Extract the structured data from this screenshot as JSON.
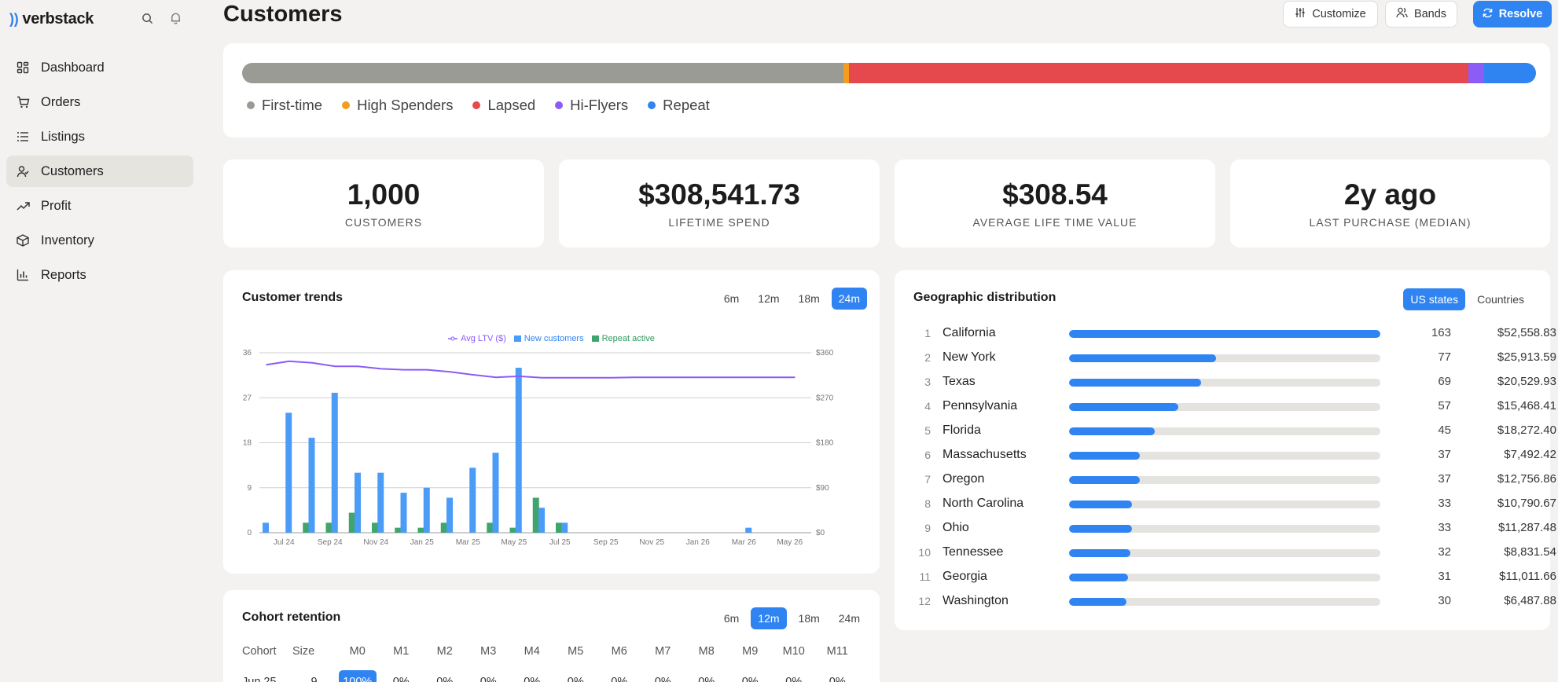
{
  "brand": {
    "name": "verbstack"
  },
  "sidebar": {
    "items": [
      {
        "label": "Dashboard",
        "icon": "dashboard-icon"
      },
      {
        "label": "Orders",
        "icon": "cart-icon"
      },
      {
        "label": "Listings",
        "icon": "list-icon"
      },
      {
        "label": "Customers",
        "icon": "user-icon"
      },
      {
        "label": "Profit",
        "icon": "trend-up-icon"
      },
      {
        "label": "Inventory",
        "icon": "box-icon"
      },
      {
        "label": "Reports",
        "icon": "bar-chart-icon"
      }
    ],
    "active": "Customers"
  },
  "header": {
    "title": "Customers",
    "buttons": {
      "customize": "Customize",
      "bands": "Bands",
      "resolve": "Resolve"
    }
  },
  "segments": {
    "items": [
      {
        "label": "First-time",
        "share": 0.465,
        "color": "#9b9b95"
      },
      {
        "label": "High Spenders",
        "share": 0.004,
        "color": "#f29d1c"
      },
      {
        "label": "Lapsed",
        "share": 0.479,
        "color": "#e5484d"
      },
      {
        "label": "Hi-Flyers",
        "share": 0.012,
        "color": "#8b5cf6"
      },
      {
        "label": "Repeat",
        "share": 0.04,
        "color": "#2f84f2"
      }
    ]
  },
  "kpis": [
    {
      "value": "1,000",
      "label": "CUSTOMERS"
    },
    {
      "value": "$308,541.73",
      "label": "LIFETIME SPEND"
    },
    {
      "value": "$308.54",
      "label": "AVERAGE LIFE TIME VALUE"
    },
    {
      "value": "2y ago",
      "label": "LAST PURCHASE (MEDIAN)"
    }
  ],
  "trends": {
    "title": "Customer trends",
    "ranges": [
      "6m",
      "12m",
      "18m",
      "24m"
    ],
    "active_range": "24m"
  },
  "chart_data": {
    "type": "bar",
    "legend": [
      "Avg LTV ($)",
      "New customers",
      "Repeat active"
    ],
    "x_ticks": [
      "Jul 24",
      "Sep 24",
      "Nov 24",
      "Jan 25",
      "Mar 25",
      "May 25",
      "Jul 25",
      "Sep 25",
      "Nov 25",
      "Jan 26",
      "Mar 26",
      "May 26"
    ],
    "y_left_ticks": [
      "0",
      "9",
      "18",
      "27",
      "36"
    ],
    "y_right_ticks": [
      "$0",
      "$90",
      "$180",
      "$270",
      "$360"
    ],
    "ylim_left": [
      0,
      36
    ],
    "ylim_right": [
      0,
      360
    ],
    "series": [
      {
        "name": "New customers",
        "color": "#4b9cf7",
        "values": [
          2,
          24,
          19,
          28,
          12,
          12,
          8,
          9,
          7,
          13,
          16,
          33,
          5,
          2,
          0,
          0,
          0,
          0,
          0,
          0,
          0,
          1,
          0,
          0
        ]
      },
      {
        "name": "Repeat active",
        "color": "#3fa56b",
        "values": [
          0,
          2,
          2,
          4,
          2,
          1,
          1,
          2,
          0,
          2,
          1,
          7,
          2,
          0,
          0,
          0,
          0,
          0,
          0,
          0,
          0,
          0,
          0,
          0
        ]
      },
      {
        "name": "Avg LTV ($)",
        "color": "#8b5cf6",
        "values": [
          336,
          343,
          340,
          333,
          333,
          328,
          326,
          326,
          322,
          316,
          311,
          313,
          310,
          310,
          310,
          310,
          311,
          311,
          311,
          311,
          311,
          311,
          311,
          311
        ]
      }
    ],
    "grid": true
  },
  "geo": {
    "title": "Geographic distribution",
    "tabs": [
      "US states",
      "Countries"
    ],
    "active_tab": "US states",
    "rows": [
      {
        "rank": "1",
        "name": "California",
        "count": "163",
        "amount": "$52,558.83",
        "share": 1.0
      },
      {
        "rank": "2",
        "name": "New York",
        "count": "77",
        "amount": "$25,913.59",
        "share": 0.472
      },
      {
        "rank": "3",
        "name": "Texas",
        "count": "69",
        "amount": "$20,529.93",
        "share": 0.423
      },
      {
        "rank": "4",
        "name": "Pennsylvania",
        "count": "57",
        "amount": "$15,468.41",
        "share": 0.35
      },
      {
        "rank": "5",
        "name": "Florida",
        "count": "45",
        "amount": "$18,272.40",
        "share": 0.276
      },
      {
        "rank": "6",
        "name": "Massachusetts",
        "count": "37",
        "amount": "$7,492.42",
        "share": 0.227
      },
      {
        "rank": "7",
        "name": "Oregon",
        "count": "37",
        "amount": "$12,756.86",
        "share": 0.227
      },
      {
        "rank": "8",
        "name": "North Carolina",
        "count": "33",
        "amount": "$10,790.67",
        "share": 0.202
      },
      {
        "rank": "9",
        "name": "Ohio",
        "count": "33",
        "amount": "$11,287.48",
        "share": 0.202
      },
      {
        "rank": "10",
        "name": "Tennessee",
        "count": "32",
        "amount": "$8,831.54",
        "share": 0.196
      },
      {
        "rank": "11",
        "name": "Georgia",
        "count": "31",
        "amount": "$11,011.66",
        "share": 0.19
      },
      {
        "rank": "12",
        "name": "Washington",
        "count": "30",
        "amount": "$6,487.88",
        "share": 0.184
      }
    ]
  },
  "cohort": {
    "title": "Cohort retention",
    "ranges": [
      "6m",
      "12m",
      "18m",
      "24m"
    ],
    "active_range": "12m",
    "headers": [
      "Cohort",
      "Size",
      "M0",
      "M1",
      "M2",
      "M3",
      "M4",
      "M5",
      "M6",
      "M7",
      "M8",
      "M9",
      "M10",
      "M11"
    ],
    "rows": [
      {
        "cohort": "Jun 25",
        "size": "9",
        "cells": [
          "100%",
          "0%",
          "0%",
          "0%",
          "0%",
          "0%",
          "0%",
          "0%",
          "0%",
          "0%",
          "0%",
          "0%"
        ]
      }
    ]
  }
}
